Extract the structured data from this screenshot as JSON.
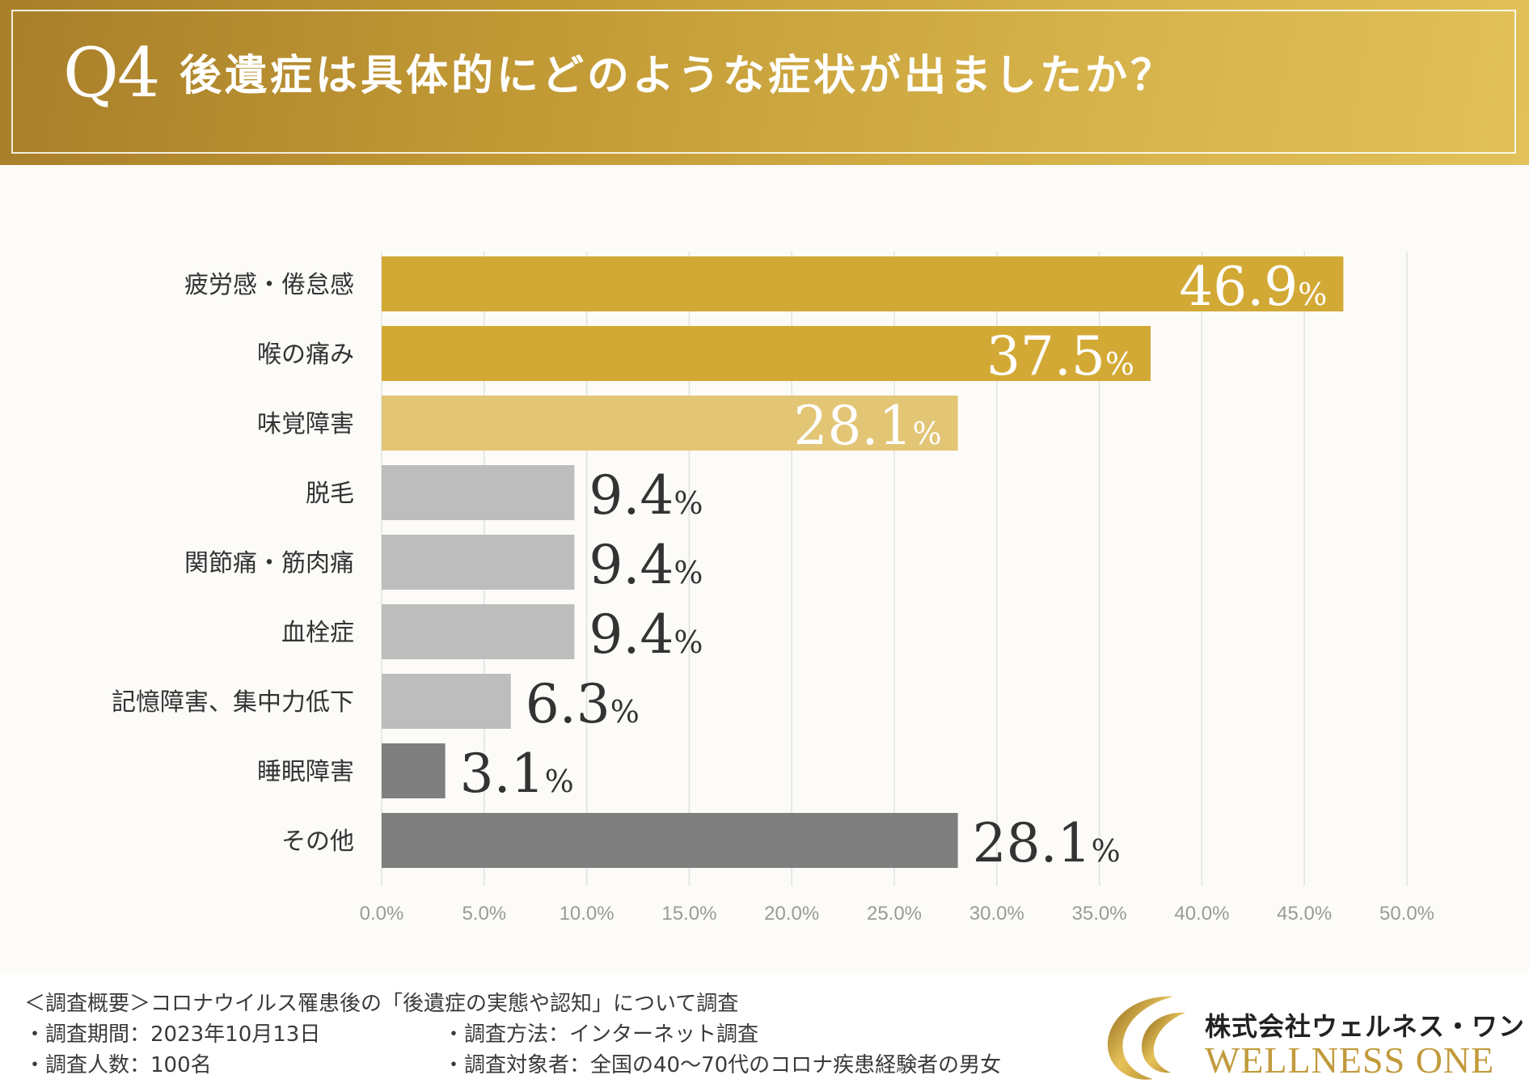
{
  "header": {
    "q_number": "Q4",
    "question": "後遺症は具体的にどのような症状が出ましたか？"
  },
  "colors": {
    "gold_dark": "#d3a935",
    "gold_light": "#e2c575",
    "gray_light": "#bdbdbd",
    "gray_dark": "#7f7f7f",
    "grid": "#e1e1e1",
    "tick": "#9a9a9a"
  },
  "chart_data": {
    "type": "bar",
    "orientation": "horizontal",
    "title": "後遺症は具体的にどのような症状が出ましたか？",
    "categories": [
      "疲労感・倦怠感",
      "喉の痛み",
      "味覚障害",
      "脱毛",
      "関節痛・筋肉痛",
      "血栓症",
      "記憶障害、集中力低下",
      "睡眠障害",
      "その他"
    ],
    "values": [
      46.9,
      37.5,
      28.1,
      9.4,
      9.4,
      9.4,
      6.3,
      3.1,
      28.1
    ],
    "value_labels": [
      "46.9",
      "37.5",
      "28.1",
      "9.4",
      "9.4",
      "9.4",
      "6.3",
      "3.1",
      "28.1"
    ],
    "unit": "%",
    "bar_colors": [
      "#d3a935",
      "#d3a935",
      "#e2c575",
      "#bdbdbd",
      "#bdbdbd",
      "#bdbdbd",
      "#bdbdbd",
      "#7f7f7f",
      "#7f7f7f"
    ],
    "label_inside": [
      true,
      true,
      true,
      false,
      false,
      false,
      false,
      false,
      false
    ],
    "xlim": [
      0,
      50
    ],
    "xticks": [
      "0.0%",
      "5.0%",
      "10.0%",
      "15.0%",
      "20.0%",
      "25.0%",
      "30.0%",
      "35.0%",
      "40.0%",
      "45.0%",
      "50.0%"
    ],
    "grid": true
  },
  "footer": {
    "overview": "＜調査概要＞コロナウイルス罹患後の「後遺症の実態や認知」について調査",
    "period": "・調査期間：2023年10月13日",
    "method": "・調査方法：インターネット調査",
    "count": "・調査人数：100名",
    "target": "・調査対象者：全国の40〜70代のコロナ疾患経験者の男女"
  },
  "logo": {
    "company_jp": "株式会社ウェルネス・ワン",
    "company_en": "WELLNESS ONE"
  }
}
